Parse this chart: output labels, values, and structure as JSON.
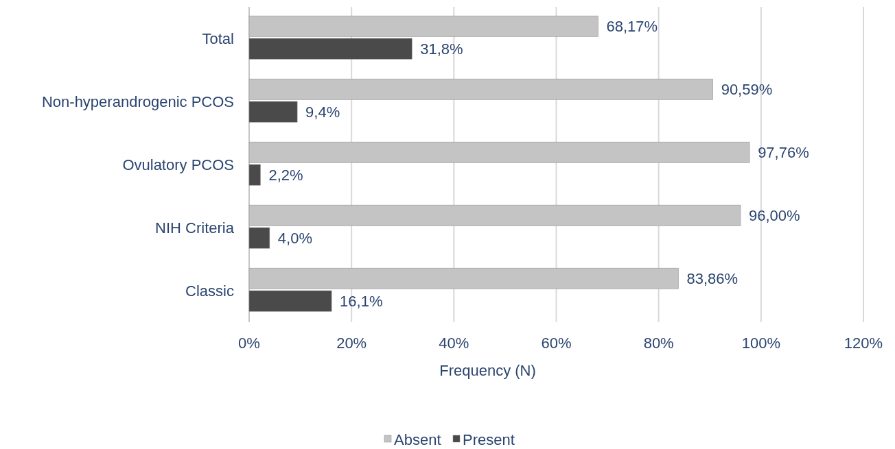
{
  "chart_data": {
    "type": "bar",
    "orientation": "horizontal",
    "xlabel": "Frequency (N)",
    "categories": [
      "Total",
      "Non-hyperandrogenic PCOS",
      "Ovulatory PCOS",
      "NIH Criteria",
      "Classic"
    ],
    "series": [
      {
        "name": "Absent",
        "color": "#c4c4c4",
        "values": [
          68.17,
          90.59,
          97.76,
          96.0,
          83.86
        ],
        "value_labels": [
          "68,17%",
          "90,59%",
          "97,76%",
          "96,00%",
          "83,86%"
        ]
      },
      {
        "name": "Present",
        "color": "#4a4a4a",
        "values": [
          31.8,
          9.4,
          2.2,
          4.0,
          16.1
        ],
        "value_labels": [
          "31,8%",
          "9,4%",
          "2,2%",
          "4,0%",
          "16,1%"
        ]
      }
    ],
    "xlim": [
      0,
      120
    ],
    "xticks": [
      {
        "value": 0,
        "label": "0%"
      },
      {
        "value": 20,
        "label": "20%"
      },
      {
        "value": 40,
        "label": "40%"
      },
      {
        "value": 60,
        "label": "60%"
      },
      {
        "value": 80,
        "label": "80%"
      },
      {
        "value": 100,
        "label": "100%"
      },
      {
        "value": 120,
        "label": "120%"
      }
    ],
    "grid": "x",
    "legend": "bottom"
  }
}
